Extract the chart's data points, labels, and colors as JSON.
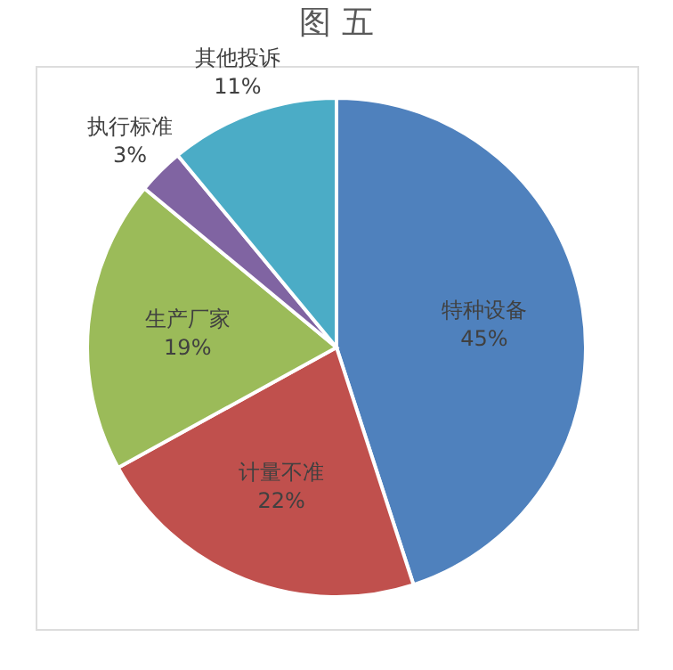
{
  "chart_data": {
    "type": "pie",
    "title": "图 五",
    "categories": [
      "特种设备",
      "计量不准",
      "生产厂家",
      "执行标准",
      "其他投诉"
    ],
    "values": [
      45,
      22,
      19,
      3,
      11
    ],
    "colors": [
      "#4f81bd",
      "#c0504d",
      "#9bbb59",
      "#8064a2",
      "#4bacc6"
    ],
    "value_labels": [
      "45%",
      "22%",
      "19%",
      "3%",
      "11%"
    ],
    "legend": false
  }
}
